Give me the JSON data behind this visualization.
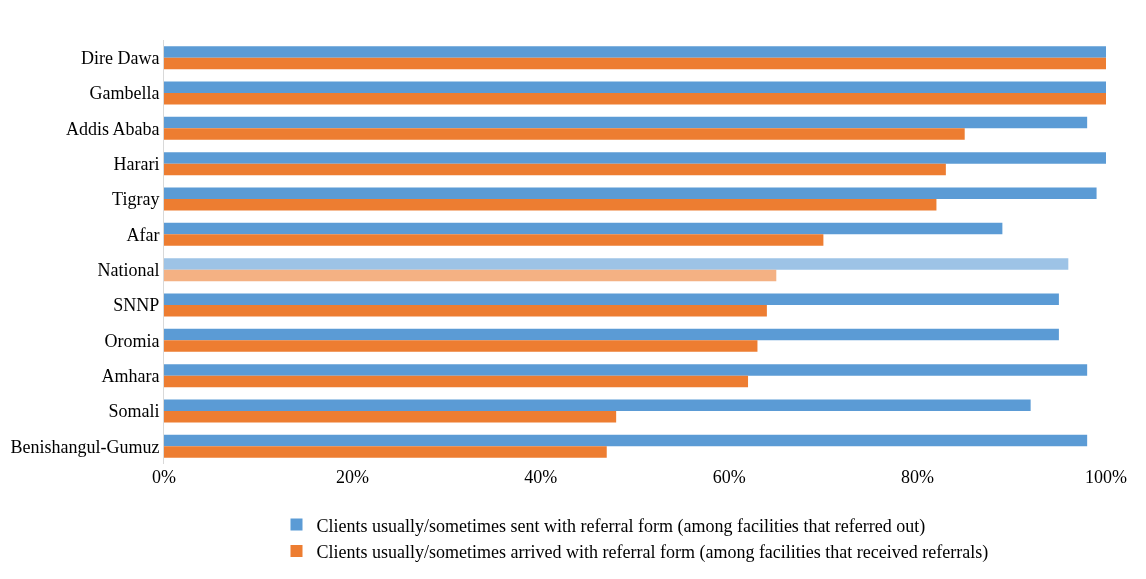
{
  "chart_data": {
    "type": "bar",
    "orientation": "horizontal",
    "categories": [
      "Dire Dawa",
      "Gambella",
      "Addis Ababa",
      "Harari",
      "Tigray",
      "Afar",
      "National",
      "SNNP",
      "Oromia",
      "Amhara",
      "Somali",
      "Benishangul-Gumuz"
    ],
    "series": [
      {
        "name": "Clients usually/sometimes sent with referral form (among facilities that referred out)",
        "color": "#5b9bd5",
        "colors": [
          null,
          null,
          null,
          null,
          null,
          null,
          "#9dc3e6",
          null,
          null,
          null,
          null,
          null
        ],
        "values": [
          100,
          100,
          98,
          100,
          99,
          89,
          96,
          95,
          95,
          98,
          92,
          98
        ]
      },
      {
        "name": "Clients usually/sometimes arrived with referral form (among facilities that received referrals)",
        "color": "#ed7d31",
        "colors": [
          null,
          null,
          null,
          null,
          null,
          null,
          "#f4b183",
          null,
          null,
          null,
          null,
          null
        ],
        "values": [
          100,
          100,
          85,
          83,
          82,
          70,
          65,
          64,
          63,
          62,
          48,
          47
        ]
      }
    ],
    "xlim": [
      0,
      100
    ],
    "xticks": [
      {
        "value": 0,
        "label": "0%"
      },
      {
        "value": 20,
        "label": "20%"
      },
      {
        "value": 40,
        "label": "40%"
      },
      {
        "value": 60,
        "label": "60%"
      },
      {
        "value": 80,
        "label": "80%"
      },
      {
        "value": 100,
        "label": "100%"
      }
    ],
    "legend": "bottom"
  }
}
